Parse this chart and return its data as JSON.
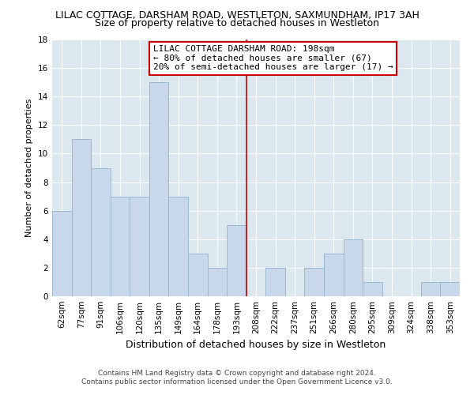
{
  "title": "LILAC COTTAGE, DARSHAM ROAD, WESTLETON, SAXMUNDHAM, IP17 3AH",
  "subtitle": "Size of property relative to detached houses in Westleton",
  "xlabel": "Distribution of detached houses by size in Westleton",
  "ylabel": "Number of detached properties",
  "bar_labels": [
    "62sqm",
    "77sqm",
    "91sqm",
    "106sqm",
    "120sqm",
    "135sqm",
    "149sqm",
    "164sqm",
    "178sqm",
    "193sqm",
    "208sqm",
    "222sqm",
    "237sqm",
    "251sqm",
    "266sqm",
    "280sqm",
    "295sqm",
    "309sqm",
    "324sqm",
    "338sqm",
    "353sqm"
  ],
  "bar_values": [
    6,
    11,
    9,
    7,
    7,
    15,
    7,
    3,
    2,
    5,
    0,
    2,
    0,
    2,
    3,
    4,
    1,
    0,
    0,
    1,
    1
  ],
  "bar_color": "#c8d8ea",
  "bar_edge_color": "#9ab8d0",
  "vline_x_index": 9.5,
  "vline_color": "#cc0000",
  "annotation_text": "LILAC COTTAGE DARSHAM ROAD: 198sqm\n← 80% of detached houses are smaller (67)\n20% of semi-detached houses are larger (17) →",
  "annotation_box_color": "#ffffff",
  "annotation_box_edge": "#cc0000",
  "ylim": [
    0,
    18
  ],
  "yticks": [
    0,
    2,
    4,
    6,
    8,
    10,
    12,
    14,
    16,
    18
  ],
  "footer1": "Contains HM Land Registry data © Crown copyright and database right 2024.",
  "footer2": "Contains public sector information licensed under the Open Government Licence v3.0.",
  "bg_color": "#ffffff",
  "plot_bg_color": "#dce8f0",
  "grid_color": "#ffffff",
  "title_fontsize": 9,
  "subtitle_fontsize": 9,
  "xlabel_fontsize": 9,
  "ylabel_fontsize": 8,
  "tick_fontsize": 7.5,
  "footer_fontsize": 6.5,
  "annotation_fontsize": 8
}
